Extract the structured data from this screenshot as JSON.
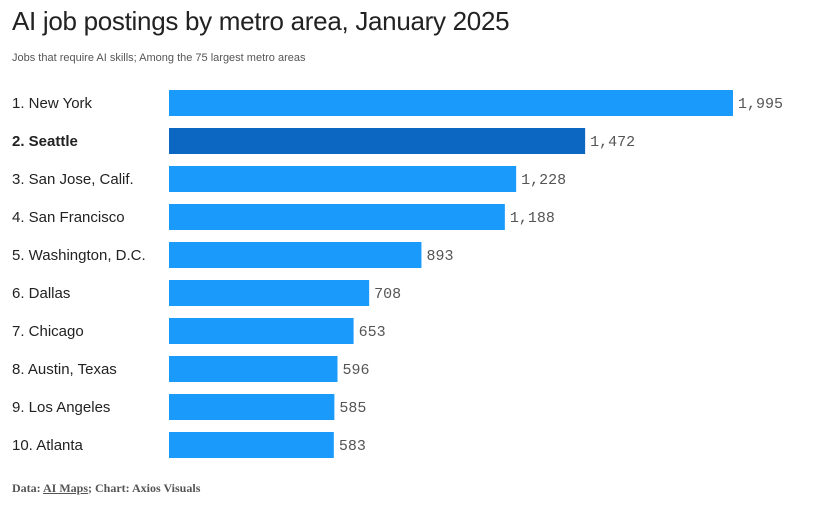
{
  "chart_data": {
    "type": "bar",
    "orientation": "horizontal",
    "title": "AI job postings by metro area, January 2025",
    "subtitle": "Jobs that require AI skills; Among the 75 largest metro areas",
    "categories": [
      "1. New York",
      "2. Seattle",
      "3. San Jose, Calif.",
      "4. San Francisco",
      "5. Washington, D.C.",
      "6. Dallas",
      "7. Chicago",
      "8. Austin, Texas",
      "9. Los Angeles",
      "10. Atlanta"
    ],
    "values": [
      1995,
      1472,
      1228,
      1188,
      893,
      708,
      653,
      596,
      585,
      583
    ],
    "value_labels": [
      "1,995",
      "1,472",
      "1,228",
      "1,188",
      "893",
      "708",
      "653",
      "596",
      "585",
      "583"
    ],
    "highlight": "2. Seattle",
    "colors": {
      "bar": "#1a9bfc",
      "highlight": "#0b67c1",
      "value_text": "#555555",
      "label_text": "#222222"
    },
    "grid": false,
    "legend": "none"
  },
  "footer": {
    "prefix": "Data: ",
    "source_link": "AI Maps",
    "suffix": "; Chart: Axios Visuals"
  }
}
